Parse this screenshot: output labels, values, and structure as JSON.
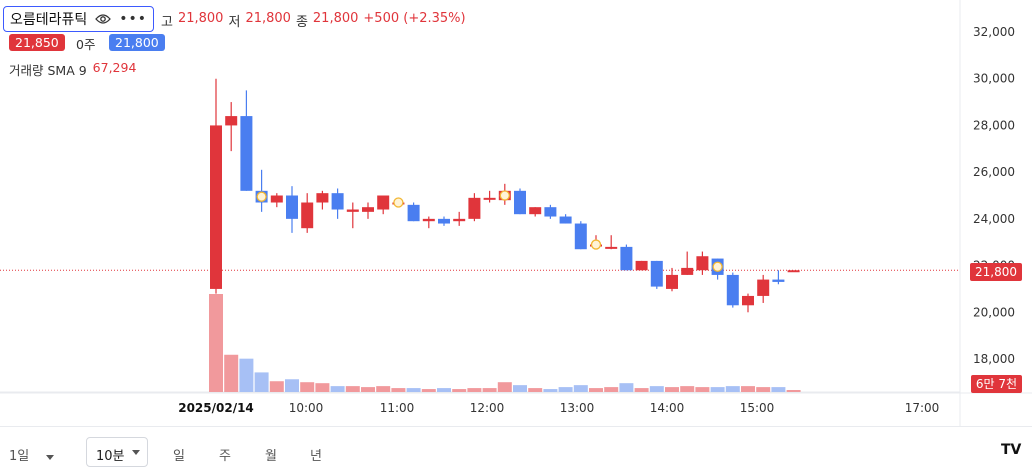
{
  "header": {
    "stock_name": "오름테라퓨틱",
    "high_label": "고",
    "high_value": "21,800",
    "low_label": "저",
    "low_value": "21,800",
    "close_label": "종",
    "close_value": "21,800",
    "change": "+500 (+2.35%)",
    "bid_price": "21,850",
    "spread_qty": "0주",
    "ask_price": "21,800",
    "volume_label": "거래량 SMA 9",
    "volume_value": "67,294"
  },
  "price_tag": "21,800",
  "volume_tag": "6만 7천",
  "toolbar": {
    "range": "1일",
    "interval": "10분",
    "day": "일",
    "week": "주",
    "month": "월",
    "year": "년",
    "logo": "TV"
  },
  "colors": {
    "up": "#e0353b",
    "down": "#4a7ef0",
    "up_vol": "#f1999c",
    "down_vol": "#a7c0f5"
  },
  "chart_data": {
    "type": "candlestick",
    "y_ticks": [
      18000,
      20000,
      22000,
      24000,
      26000,
      28000,
      30000,
      32000
    ],
    "ylim": [
      16700,
      32500
    ],
    "x_ticks": [
      "2025/02/14",
      "10:00",
      "11:00",
      "12:00",
      "13:00",
      "14:00",
      "15:00",
      "17:00"
    ],
    "last_price": 21800,
    "candles": [
      {
        "o": 21000,
        "h": 30000,
        "l": 20800,
        "c": 28000,
        "v": 100
      },
      {
        "o": 28000,
        "h": 29000,
        "l": 26900,
        "c": 28400,
        "v": 38
      },
      {
        "o": 28400,
        "h": 29500,
        "l": 25200,
        "c": 25200,
        "v": 34
      },
      {
        "o": 25200,
        "h": 26100,
        "l": 24300,
        "c": 24700,
        "v": 20
      },
      {
        "o": 24700,
        "h": 25100,
        "l": 24500,
        "c": 25000,
        "v": 11
      },
      {
        "o": 25000,
        "h": 25400,
        "l": 23400,
        "c": 24000,
        "v": 13
      },
      {
        "o": 23600,
        "h": 25100,
        "l": 23400,
        "c": 24700,
        "v": 10
      },
      {
        "o": 24700,
        "h": 25200,
        "l": 24400,
        "c": 25100,
        "v": 9
      },
      {
        "o": 25100,
        "h": 25300,
        "l": 24000,
        "c": 24400,
        "v": 6
      },
      {
        "o": 24300,
        "h": 24700,
        "l": 23600,
        "c": 24400,
        "v": 6
      },
      {
        "o": 24300,
        "h": 24700,
        "l": 24000,
        "c": 24500,
        "v": 5
      },
      {
        "o": 24400,
        "h": 25000,
        "l": 24200,
        "c": 25000,
        "v": 6
      },
      {
        "o": 24700,
        "h": 24900,
        "l": 24500,
        "c": 24700,
        "v": 4
      },
      {
        "o": 24600,
        "h": 24700,
        "l": 23900,
        "c": 23900,
        "v": 4
      },
      {
        "o": 23900,
        "h": 24100,
        "l": 23600,
        "c": 24000,
        "v": 3
      },
      {
        "o": 24000,
        "h": 24100,
        "l": 23700,
        "c": 23800,
        "v": 4
      },
      {
        "o": 23900,
        "h": 24300,
        "l": 23700,
        "c": 24000,
        "v": 3
      },
      {
        "o": 24000,
        "h": 25100,
        "l": 23900,
        "c": 24900,
        "v": 4
      },
      {
        "o": 24900,
        "h": 25200,
        "l": 24700,
        "c": 24900,
        "v": 4
      },
      {
        "o": 24800,
        "h": 25500,
        "l": 24600,
        "c": 25200,
        "v": 10
      },
      {
        "o": 25200,
        "h": 25300,
        "l": 24200,
        "c": 24200,
        "v": 7
      },
      {
        "o": 24200,
        "h": 24500,
        "l": 24100,
        "c": 24500,
        "v": 4
      },
      {
        "o": 24500,
        "h": 24600,
        "l": 24000,
        "c": 24100,
        "v": 3
      },
      {
        "o": 24100,
        "h": 24200,
        "l": 23800,
        "c": 23800,
        "v": 5
      },
      {
        "o": 23800,
        "h": 23900,
        "l": 22700,
        "c": 22700,
        "v": 7
      },
      {
        "o": 22900,
        "h": 23300,
        "l": 22700,
        "c": 22900,
        "v": 4
      },
      {
        "o": 22800,
        "h": 23300,
        "l": 22700,
        "c": 22800,
        "v": 5
      },
      {
        "o": 22800,
        "h": 22900,
        "l": 21800,
        "c": 21800,
        "v": 9
      },
      {
        "o": 21800,
        "h": 22200,
        "l": 21800,
        "c": 22200,
        "v": 4
      },
      {
        "o": 22200,
        "h": 22200,
        "l": 21000,
        "c": 21100,
        "v": 6
      },
      {
        "o": 21000,
        "h": 21900,
        "l": 20900,
        "c": 21600,
        "v": 5
      },
      {
        "o": 21600,
        "h": 22600,
        "l": 21600,
        "c": 21900,
        "v": 6
      },
      {
        "o": 21800,
        "h": 22600,
        "l": 21600,
        "c": 22400,
        "v": 5
      },
      {
        "o": 22300,
        "h": 22300,
        "l": 21400,
        "c": 21600,
        "v": 5
      },
      {
        "o": 21600,
        "h": 21700,
        "l": 20200,
        "c": 20300,
        "v": 6
      },
      {
        "o": 20300,
        "h": 20800,
        "l": 20000,
        "c": 20700,
        "v": 6
      },
      {
        "o": 20700,
        "h": 21600,
        "l": 20400,
        "c": 21400,
        "v": 5
      },
      {
        "o": 21400,
        "h": 21800,
        "l": 21200,
        "c": 21300,
        "v": 5
      },
      {
        "o": 21800,
        "h": 21800,
        "l": 21800,
        "c": 21800,
        "v": 2
      }
    ],
    "markers": [
      3,
      12,
      19,
      25,
      33
    ]
  }
}
